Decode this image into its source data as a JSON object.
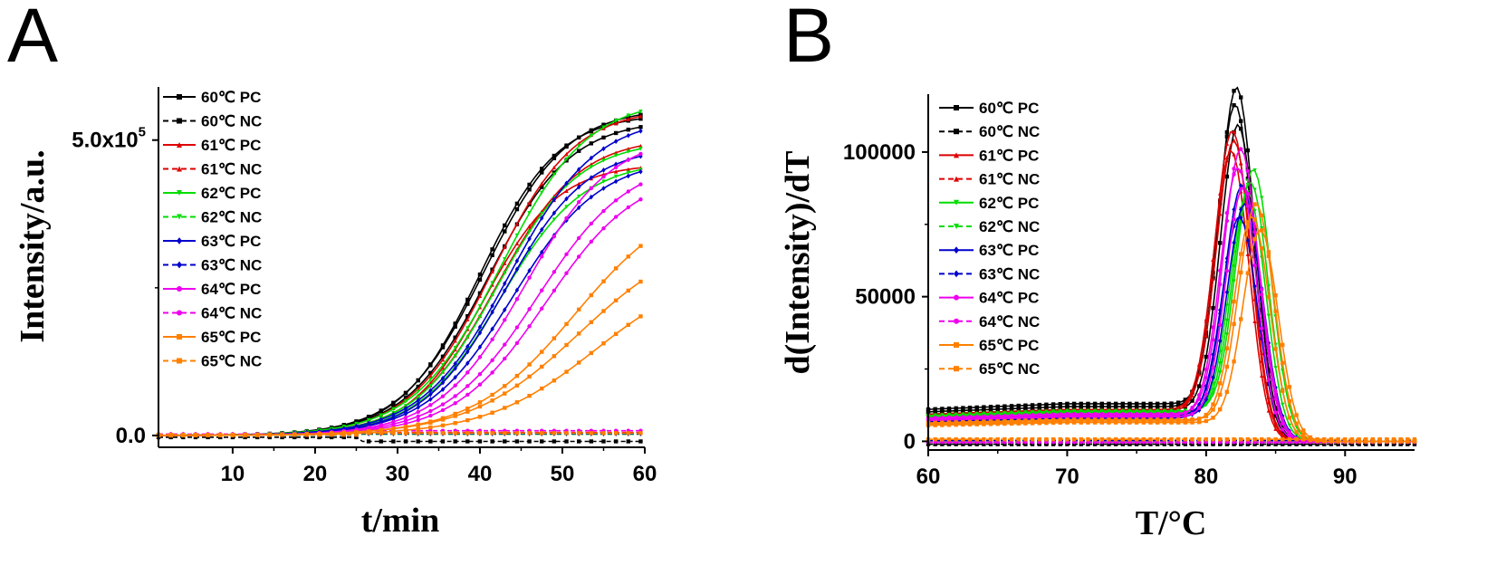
{
  "panels": [
    {
      "letter": "A",
      "xlabel": "t/min",
      "ylabel": "Intensity/a.u.",
      "xticks": [
        "10",
        "20",
        "30",
        "40",
        "50",
        "60"
      ],
      "yticks": [
        {
          "label": "0.0",
          "value": 0
        },
        {
          "label": "5.0x10",
          "sup": "5",
          "value": 500000
        }
      ]
    },
    {
      "letter": "B",
      "xlabel": "T/°C",
      "ylabel": "d(Intensity)/dT",
      "xticks": [
        "60",
        "70",
        "80",
        "90"
      ],
      "yticks": [
        {
          "label": "0",
          "value": 0
        },
        {
          "label": "50000",
          "value": 50000
        },
        {
          "label": "100000",
          "value": 100000
        }
      ]
    }
  ],
  "legend": [
    {
      "label": "60℃ PC",
      "color": "#000000",
      "dash": false,
      "marker": "square"
    },
    {
      "label": "60℃ NC",
      "color": "#000000",
      "dash": true,
      "marker": "square"
    },
    {
      "label": "61℃ PC",
      "color": "#dd0000",
      "dash": false,
      "marker": "triangle"
    },
    {
      "label": "61℃ NC",
      "color": "#dd0000",
      "dash": true,
      "marker": "triangle"
    },
    {
      "label": "62℃ PC",
      "color": "#00dd00",
      "dash": false,
      "marker": "triangle-down"
    },
    {
      "label": "62℃ NC",
      "color": "#00dd00",
      "dash": true,
      "marker": "triangle-down"
    },
    {
      "label": "63℃ PC",
      "color": "#0000cc",
      "dash": false,
      "marker": "diamond"
    },
    {
      "label": "63℃ NC",
      "color": "#0000cc",
      "dash": true,
      "marker": "diamond"
    },
    {
      "label": "64℃ PC",
      "color": "#ee00ee",
      "dash": false,
      "marker": "circle"
    },
    {
      "label": "64℃ NC",
      "color": "#ee00ee",
      "dash": true,
      "marker": "circle"
    },
    {
      "label": "65℃ PC",
      "color": "#ff8000",
      "dash": false,
      "marker": "square"
    },
    {
      "label": "65℃ NC",
      "color": "#ff8000",
      "dash": true,
      "marker": "square"
    }
  ],
  "chart_data": [
    {
      "type": "line",
      "title": "A",
      "xlabel": "t/min",
      "ylabel": "Intensity/a.u.",
      "xlim": [
        1,
        60
      ],
      "ylim": [
        -20000,
        590000
      ],
      "model": "sigmoid",
      "series": [
        {
          "name": "60℃ PC",
          "curves": [
            {
              "top": 555000,
              "mid": 40.5,
              "k": 0.2
            },
            {
              "top": 545000,
              "mid": 40,
              "k": 0.21
            },
            {
              "top": 535000,
              "mid": 41,
              "k": 0.2
            }
          ]
        },
        {
          "name": "60℃ NC",
          "curves": [
            {
              "top": -10000,
              "mid": 30,
              "k": 0.3
            }
          ]
        },
        {
          "name": "61℃ PC",
          "curves": [
            {
              "top": 555000,
              "mid": 41.5,
              "k": 0.2
            },
            {
              "top": 460000,
              "mid": 40.5,
              "k": 0.22
            },
            {
              "top": 505000,
              "mid": 42,
              "k": 0.2
            }
          ]
        },
        {
          "name": "61℃ NC",
          "curves": [
            {
              "top": 5000,
              "mid": 30,
              "k": 0.3
            }
          ]
        },
        {
          "name": "62℃ PC",
          "curves": [
            {
              "top": 570000,
              "mid": 42.5,
              "k": 0.19
            },
            {
              "top": 500000,
              "mid": 42,
              "k": 0.2
            },
            {
              "top": 465000,
              "mid": 42.5,
              "k": 0.2
            }
          ]
        },
        {
          "name": "62℃ NC",
          "curves": [
            {
              "top": 2000,
              "mid": 30,
              "k": 0.3
            }
          ]
        },
        {
          "name": "63℃ PC",
          "curves": [
            {
              "top": 540000,
              "mid": 43.5,
              "k": 0.19
            },
            {
              "top": 490000,
              "mid": 43,
              "k": 0.2
            },
            {
              "top": 470000,
              "mid": 44,
              "k": 0.19
            }
          ]
        },
        {
          "name": "63℃ NC",
          "curves": [
            {
              "top": 3000,
              "mid": 30,
              "k": 0.3
            }
          ]
        },
        {
          "name": "64℃ PC",
          "curves": [
            {
              "top": 510000,
              "mid": 45.5,
              "k": 0.19
            },
            {
              "top": 470000,
              "mid": 47,
              "k": 0.18
            },
            {
              "top": 450000,
              "mid": 48,
              "k": 0.18
            }
          ]
        },
        {
          "name": "64℃ NC",
          "curves": [
            {
              "top": 8000,
              "mid": 30,
              "k": 0.3
            }
          ]
        },
        {
          "name": "65℃ PC",
          "curves": [
            {
              "top": 410000,
              "mid": 51.5,
              "k": 0.16
            },
            {
              "top": 345000,
              "mid": 52,
              "k": 0.15
            },
            {
              "top": 290000,
              "mid": 54,
              "k": 0.15
            }
          ]
        },
        {
          "name": "65℃ NC",
          "curves": [
            {
              "top": 4000,
              "mid": 30,
              "k": 0.3
            }
          ]
        }
      ]
    },
    {
      "type": "line",
      "title": "B",
      "xlabel": "T/°C",
      "ylabel": "d(Intensity)/dT",
      "xlim": [
        60,
        95
      ],
      "ylim": [
        -3000,
        120000
      ],
      "model": "melt-peak",
      "series": [
        {
          "name": "60℃ PC",
          "curves": [
            {
              "peakT": 82.2,
              "peak": 110000,
              "base": 13000
            },
            {
              "peakT": 82.1,
              "peak": 105000,
              "base": 12000
            },
            {
              "peakT": 82.3,
              "peak": 99000,
              "base": 11000
            }
          ]
        },
        {
          "name": "60℃ NC",
          "curves": [
            {
              "peakT": 82,
              "peak": 0,
              "base": -1000
            }
          ]
        },
        {
          "name": "61℃ PC",
          "curves": [
            {
              "peakT": 81.9,
              "peak": 97000,
              "base": 11000
            },
            {
              "peakT": 82.0,
              "peak": 94000,
              "base": 10500
            },
            {
              "peakT": 81.8,
              "peak": 91000,
              "base": 10000
            }
          ]
        },
        {
          "name": "61℃ NC",
          "curves": [
            {
              "peakT": 82,
              "peak": 0,
              "base": 500
            }
          ]
        },
        {
          "name": "62℃ PC",
          "curves": [
            {
              "peakT": 83.4,
              "peak": 84000,
              "base": 10500
            },
            {
              "peakT": 83.2,
              "peak": 80000,
              "base": 10000
            },
            {
              "peakT": 83.0,
              "peak": 77000,
              "base": 9500
            }
          ]
        },
        {
          "name": "62℃ NC",
          "curves": [
            {
              "peakT": 82,
              "peak": 0,
              "base": 200
            }
          ]
        },
        {
          "name": "63℃ PC",
          "curves": [
            {
              "peakT": 82.6,
              "peak": 80000,
              "base": 9000
            },
            {
              "peakT": 82.8,
              "peak": 74000,
              "base": 8500
            },
            {
              "peakT": 82.4,
              "peak": 70000,
              "base": 8000
            }
          ]
        },
        {
          "name": "63℃ NC",
          "curves": [
            {
              "peakT": 82,
              "peak": 0,
              "base": 300
            }
          ]
        },
        {
          "name": "64℃ PC",
          "curves": [
            {
              "peakT": 82.5,
              "peak": 92000,
              "base": 9500
            },
            {
              "peakT": 82.3,
              "peak": 86000,
              "base": 9000
            },
            {
              "peakT": 82.7,
              "peak": 80000,
              "base": 8500
            }
          ]
        },
        {
          "name": "64℃ NC",
          "curves": [
            {
              "peakT": 82,
              "peak": 0,
              "base": -300
            }
          ]
        },
        {
          "name": "65℃ PC",
          "curves": [
            {
              "peakT": 83.6,
              "peak": 75000,
              "base": 7500
            },
            {
              "peakT": 83.3,
              "peak": 71000,
              "base": 7000
            },
            {
              "peakT": 83.9,
              "peak": 67000,
              "base": 6500
            }
          ]
        },
        {
          "name": "65℃ NC",
          "curves": [
            {
              "peakT": 82,
              "peak": 0,
              "base": 700
            }
          ]
        }
      ]
    }
  ]
}
